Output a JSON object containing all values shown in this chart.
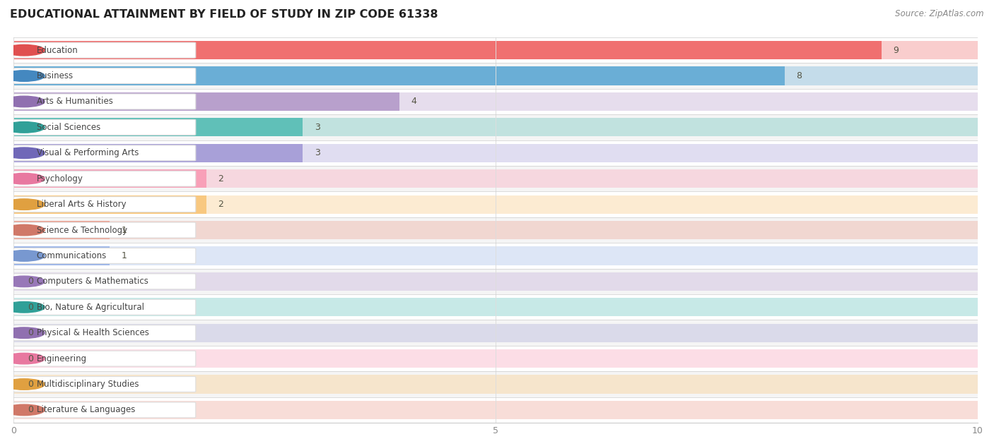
{
  "title": "EDUCATIONAL ATTAINMENT BY FIELD OF STUDY IN ZIP CODE 61338",
  "source": "Source: ZipAtlas.com",
  "categories": [
    "Education",
    "Business",
    "Arts & Humanities",
    "Social Sciences",
    "Visual & Performing Arts",
    "Psychology",
    "Liberal Arts & History",
    "Science & Technology",
    "Communications",
    "Computers & Mathematics",
    "Bio, Nature & Agricultural",
    "Physical & Health Sciences",
    "Engineering",
    "Multidisciplinary Studies",
    "Literature & Languages"
  ],
  "values": [
    9,
    8,
    4,
    3,
    3,
    2,
    2,
    1,
    1,
    0,
    0,
    0,
    0,
    0,
    0
  ],
  "bar_colors": [
    "#F07070",
    "#6AAED6",
    "#B8A0CC",
    "#60C0B8",
    "#A8A0D8",
    "#F8A0B8",
    "#F8C880",
    "#ECA090",
    "#A0B8E8",
    "#C0A8D8",
    "#60C0BC",
    "#A8A8D8",
    "#F8A0B8",
    "#F8C880",
    "#ECA090"
  ],
  "dot_colors": [
    "#E05050",
    "#4488C0",
    "#9070B0",
    "#30A098",
    "#7068B8",
    "#E878A0",
    "#E0A040",
    "#D07868",
    "#7898D0",
    "#9878B8",
    "#30A098",
    "#9070B0",
    "#E878A0",
    "#E0A040",
    "#D07868"
  ],
  "row_colors": [
    "#ffffff",
    "#f5f5f5",
    "#ffffff",
    "#f5f5f5",
    "#ffffff",
    "#f5f5f5",
    "#ffffff",
    "#f5f5f5",
    "#ffffff",
    "#f5f5f5",
    "#ffffff",
    "#f5f5f5",
    "#ffffff",
    "#f5f5f5",
    "#ffffff"
  ],
  "xlim": [
    0,
    10
  ],
  "xticks": [
    0,
    5,
    10
  ],
  "text_color": "#555544",
  "grid_color": "#dddddd",
  "title_color": "#222222",
  "source_color": "#888888"
}
